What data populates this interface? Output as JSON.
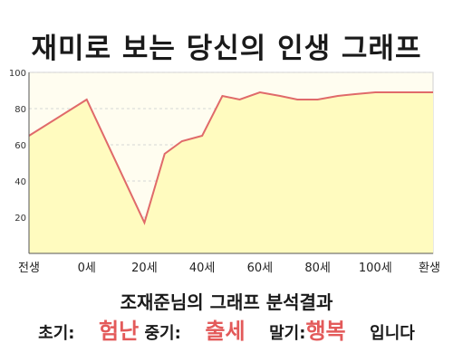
{
  "title": "재미로 보는 당신의 인생 그래프",
  "colors": {
    "line": "#e06a6a",
    "fill": "#fffbbf",
    "plot_bg": "#fffdf0",
    "highlight": "#e35a5a"
  },
  "chart_data": {
    "type": "area",
    "x_labels": [
      "전생",
      "0세",
      "20세",
      "40세",
      "60세",
      "80세",
      "100세",
      "환생"
    ],
    "x": [
      -20,
      0,
      20,
      27,
      33,
      40,
      47,
      53,
      60,
      67,
      73,
      80,
      87,
      93,
      100,
      120
    ],
    "values": [
      65,
      85,
      17,
      55,
      62,
      65,
      87,
      85,
      89,
      87,
      85,
      85,
      87,
      88,
      89,
      89
    ],
    "y_ticks": [
      20,
      40,
      60,
      80,
      100
    ],
    "ylim": [
      0,
      100
    ],
    "grid": true
  },
  "summary": {
    "line1": "조재준님의 그래프 분석결과",
    "early_label": "초기:",
    "early_value": "험난",
    "mid_label": "중기:",
    "mid_value": "출세",
    "late_label": "말기:",
    "late_value": "행복",
    "ending": "입니다"
  }
}
